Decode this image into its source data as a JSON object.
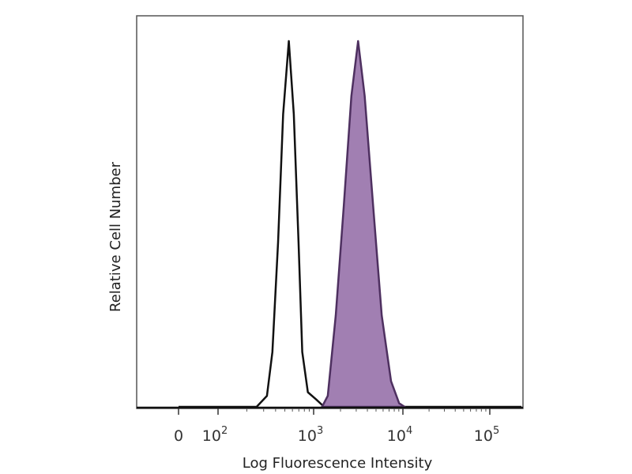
{
  "chart_data": {
    "type": "area",
    "title": "",
    "xlabel": "Log Fluorescence Intensity",
    "ylabel": "Relative Cell Number",
    "x_scale": "biexponential",
    "x_ticks": [
      {
        "value": 0,
        "label": "0",
        "exp": ""
      },
      {
        "value": 100,
        "label": "10",
        "exp": "2"
      },
      {
        "value": 1000,
        "label": "10",
        "exp": "3"
      },
      {
        "value": 10000,
        "label": "10",
        "exp": "4"
      },
      {
        "value": 100000,
        "label": "10",
        "exp": "5"
      }
    ],
    "ylim": [
      0,
      100
    ],
    "grid": false,
    "legend": "none",
    "series": [
      {
        "style": "outline",
        "color": "#111111",
        "x": [
          0,
          253,
          325,
          370,
          425,
          480,
          550,
          620,
          695,
          760,
          870,
          1070,
          1310,
          300000
        ],
        "y": [
          0,
          0,
          3,
          15,
          45,
          80,
          100,
          80,
          45,
          15,
          4,
          2,
          0,
          0
        ]
      },
      {
        "style": "filled",
        "color": "#a17fb2",
        "stroke": "#4e3060",
        "x": [
          1240,
          1440,
          1770,
          2180,
          2650,
          3150,
          3730,
          4640,
          5790,
          7360,
          9060,
          10500
        ],
        "y": [
          0,
          3,
          25,
          55,
          85,
          100,
          85,
          55,
          25,
          7,
          1,
          0
        ]
      }
    ]
  }
}
